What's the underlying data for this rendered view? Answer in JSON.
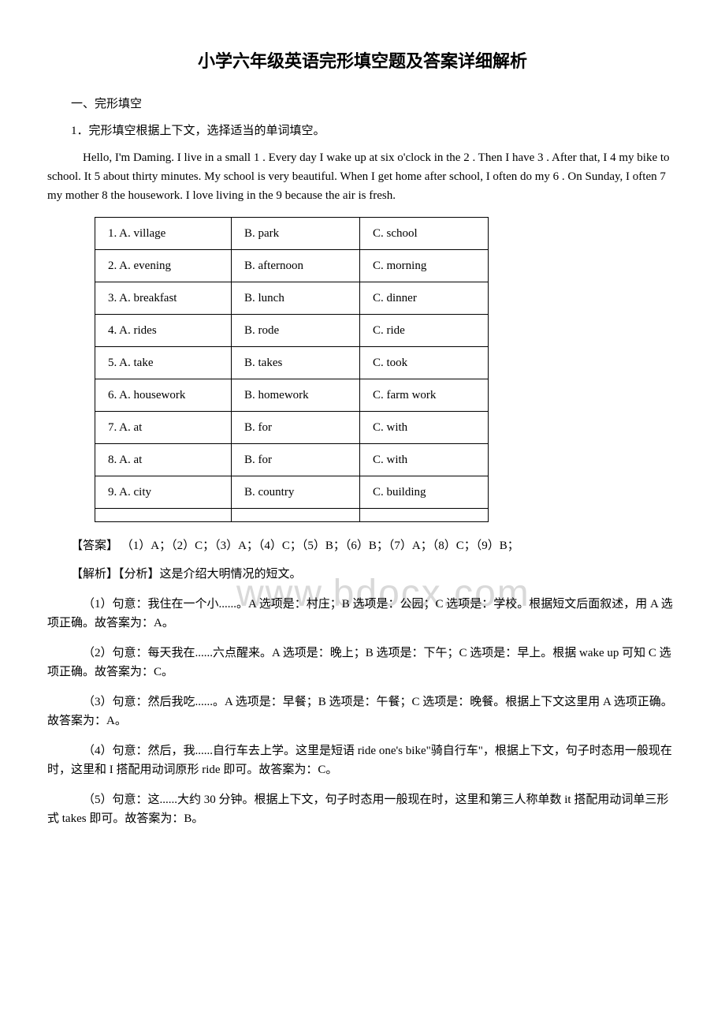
{
  "title": "小学六年级英语完形填空题及答案详细解析",
  "section_label": "一、完形填空",
  "question_label": "1．完形填空根据上下文，选择适当的单词填空。",
  "passage": "Hello, I'm Daming. I live in a small  1 . Every day I wake up at six o'clock in the  2 . Then I have  3 . After that, I  4  my bike to school. It  5  about thirty minutes. My school is very beautiful. When I get home after school, I often do my  6 . On Sunday, I often  7  my mother  8  the housework. I love living in the  9  because the air is fresh.",
  "options_table": {
    "rows": [
      {
        "a": "1. A. village",
        "b": "B. park",
        "c": "C. school"
      },
      {
        "a": "2. A. evening",
        "b": "B. afternoon",
        "c": "C. morning"
      },
      {
        "a": "3. A. breakfast",
        "b": "B. lunch",
        "c": "C. dinner"
      },
      {
        "a": "4. A. rides",
        "b": "B. rode",
        "c": "C. ride"
      },
      {
        "a": "5. A. take",
        "b": "B. takes",
        "c": "C. took"
      },
      {
        "a": "6. A. housework",
        "b": "B. homework",
        "c": "C. farm work"
      },
      {
        "a": "7. A. at",
        "b": "B. for",
        "c": "C. with"
      },
      {
        "a": "8. A. at",
        "b": "B. for",
        "c": "C. with"
      },
      {
        "a": "9. A. city",
        "b": "B. country",
        "c": "C. building"
      },
      {
        "a": "",
        "b": "",
        "c": ""
      }
    ]
  },
  "answer_label": "【答案】 （1）A；（2）C；（3）A；（4）C；（5）B；（6）B；（7）A；（8）C；（9）B；",
  "analysis_label": "【解析】【分析】这是介绍大明情况的短文。",
  "explanations": [
    "（1）句意：我住在一个小......。A 选项是：村庄；B 选项是：公园；C 选项是：学校。根据短文后面叙述，用 A 选项正确。故答案为：A。",
    "（2）句意：每天我在......六点醒来。A 选项是：晚上；B 选项是：下午；C 选项是：早上。根据 wake up 可知 C 选项正确。故答案为：C。",
    "（3）句意：然后我吃......。A 选项是：早餐；B 选项是：午餐；C 选项是：晚餐。根据上下文这里用 A 选项正确。故答案为：A。",
    "（4）句意：然后，我......自行车去上学。这里是短语 ride one's bike\"骑自行车\"，根据上下文，句子时态用一般现在时，这里和 I 搭配用动词原形 ride 即可。故答案为：C。",
    "（5）句意：这......大约 30 分钟。根据上下文，句子时态用一般现在时，这里和第三人称单数 it 搭配用动词单三形式 takes 即可。故答案为：B。"
  ],
  "watermark_text": "www.bdocx.com"
}
